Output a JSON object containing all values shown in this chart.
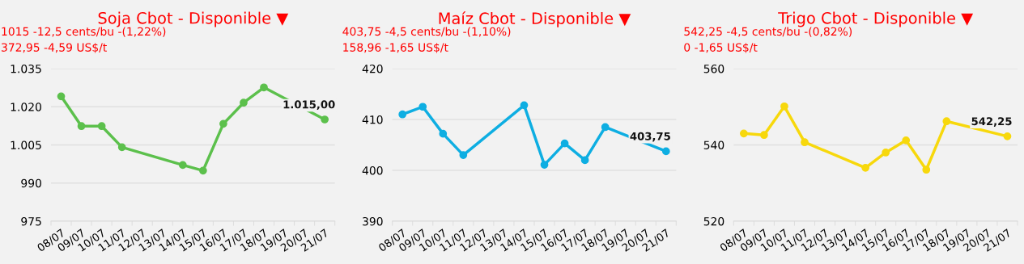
{
  "chart_data": [
    {
      "type": "line",
      "title": "Soja Cbot - Disponible ▼",
      "subtitle": "1015 -12,5 cents/bu -(1,22%)\n372,95 -4,59 US$/t",
      "categories": [
        "08/07",
        "09/07",
        "10/07",
        "11/07",
        "12/07",
        "13/07",
        "14/07",
        "15/07",
        "16/07",
        "17/07",
        "18/07",
        "19/07",
        "20/07",
        "21/07"
      ],
      "series": [
        {
          "color": "#5cc04c",
          "values": [
            1024.1,
            1012.4,
            1012.4,
            1004.1,
            null,
            null,
            997.1,
            994.9,
            1013.3,
            1021.6,
            1027.6,
            null,
            null,
            1015
          ],
          "value_labels": [
            null,
            null,
            null,
            null,
            null,
            null,
            null,
            null,
            null,
            null,
            null,
            null,
            null,
            "1.015,00"
          ]
        }
      ],
      "ylim": [
        975,
        1035
      ],
      "yticks": [
        {
          "value": 975,
          "label": "975"
        },
        {
          "value": 990,
          "label": "990"
        },
        {
          "value": 1005,
          "label": "1.005"
        },
        {
          "value": 1020,
          "label": "1.020"
        },
        {
          "value": 1035,
          "label": "1.035"
        }
      ],
      "grid": "y",
      "marker": "circle",
      "line_style": "solid"
    },
    {
      "type": "line",
      "title": "Maíz Cbot - Disponible ▼",
      "subtitle": "403,75 -4,5 cents/bu -(1,10%)\n158,96 -1,65 US$/t",
      "categories": [
        "08/07",
        "09/07",
        "10/07",
        "11/07",
        "12/07",
        "13/07",
        "14/07",
        "15/07",
        "16/07",
        "17/07",
        "18/07",
        "19/07",
        "20/07",
        "21/07"
      ],
      "series": [
        {
          "color": "#0eaee2",
          "values": [
            411.0,
            412.5,
            407.2,
            403.0,
            null,
            null,
            412.8,
            401.1,
            405.3,
            402.0,
            408.5,
            null,
            null,
            403.75
          ],
          "value_labels": [
            null,
            null,
            null,
            null,
            null,
            null,
            null,
            null,
            null,
            null,
            null,
            null,
            null,
            "403,75"
          ]
        }
      ],
      "ylim": [
        390,
        420
      ],
      "yticks": [
        390,
        400,
        410,
        420
      ],
      "grid": "y",
      "marker": "circle",
      "line_style": "solid"
    },
    {
      "type": "line",
      "title": "Trigo Cbot - Disponible ▼",
      "subtitle": "542,25 -4,5 cents/bu -(0,82%)\n0 -1,65 US$/t",
      "categories": [
        "08/07",
        "09/07",
        "10/07",
        "11/07",
        "12/07",
        "13/07",
        "14/07",
        "15/07",
        "16/07",
        "17/07",
        "18/07",
        "19/07",
        "20/07",
        "21/07"
      ],
      "series": [
        {
          "color": "#f7d80c",
          "values": [
            543.0,
            542.6,
            550.1,
            540.7,
            null,
            null,
            534.0,
            538.0,
            541.2,
            533.5,
            546.2,
            null,
            null,
            542.25
          ],
          "value_labels": [
            null,
            null,
            null,
            null,
            null,
            null,
            null,
            null,
            null,
            null,
            null,
            null,
            null,
            "542,25"
          ]
        }
      ],
      "ylim": [
        520,
        560
      ],
      "yticks": [
        520,
        540,
        560
      ],
      "grid": "y",
      "marker": "circle",
      "line_style": "solid"
    }
  ]
}
